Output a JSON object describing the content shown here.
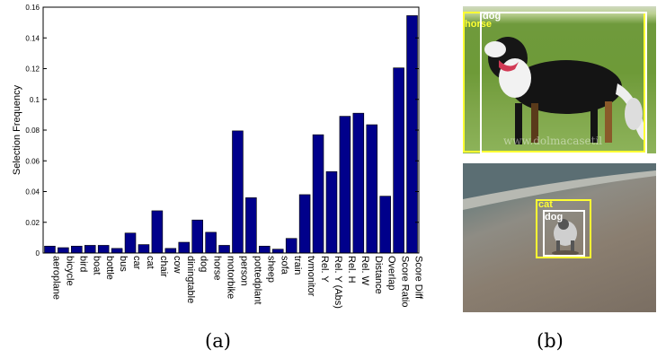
{
  "chart_data": {
    "type": "bar",
    "ylabel": "Selection Frequency",
    "xlabel": "",
    "ylim": [
      0,
      0.16
    ],
    "yticks": [
      0,
      0.02,
      0.04,
      0.06,
      0.08,
      0.1,
      0.12,
      0.14,
      0.16
    ],
    "ytick_labels": [
      "0",
      "0.02",
      "0.04",
      "0.06",
      "0.08",
      "0.1",
      "0.12",
      "0.14",
      "0.16"
    ],
    "categories": [
      "aeroplane",
      "bicycle",
      "bird",
      "boat",
      "bottle",
      "bus",
      "car",
      "cat",
      "chair",
      "cow",
      "diningtable",
      "dog",
      "horse",
      "motorbike",
      "person",
      "pottedplant",
      "sheep",
      "sofa",
      "train",
      "tvmonitor",
      "Rel. Y",
      "Rel. Y (Abs)",
      "Rel. H",
      "Rel. W",
      "Distance",
      "Overlap",
      "Score Ratio",
      "Score Diff"
    ],
    "values": [
      0.0045,
      0.0035,
      0.0045,
      0.005,
      0.005,
      0.003,
      0.013,
      0.0055,
      0.0275,
      0.003,
      0.007,
      0.0215,
      0.0135,
      0.005,
      0.0795,
      0.036,
      0.0045,
      0.0025,
      0.0095,
      0.038,
      0.077,
      0.053,
      0.089,
      0.091,
      0.0835,
      0.037,
      0.1205,
      0.1545
    ],
    "bar_color": "#00008B",
    "grid": false
  },
  "captions": {
    "a": "(a)",
    "b": "(b)"
  },
  "photo_top": {
    "boxes": [
      {
        "label": "dog",
        "color": "#ffffff"
      },
      {
        "label": "horse",
        "color": "#ffff33"
      }
    ],
    "watermark": "www.dolmacasetil"
  },
  "photo_bottom": {
    "boxes": [
      {
        "label": "cat",
        "color": "#ffff33"
      },
      {
        "label": "dog",
        "color": "#ffffff"
      }
    ]
  }
}
